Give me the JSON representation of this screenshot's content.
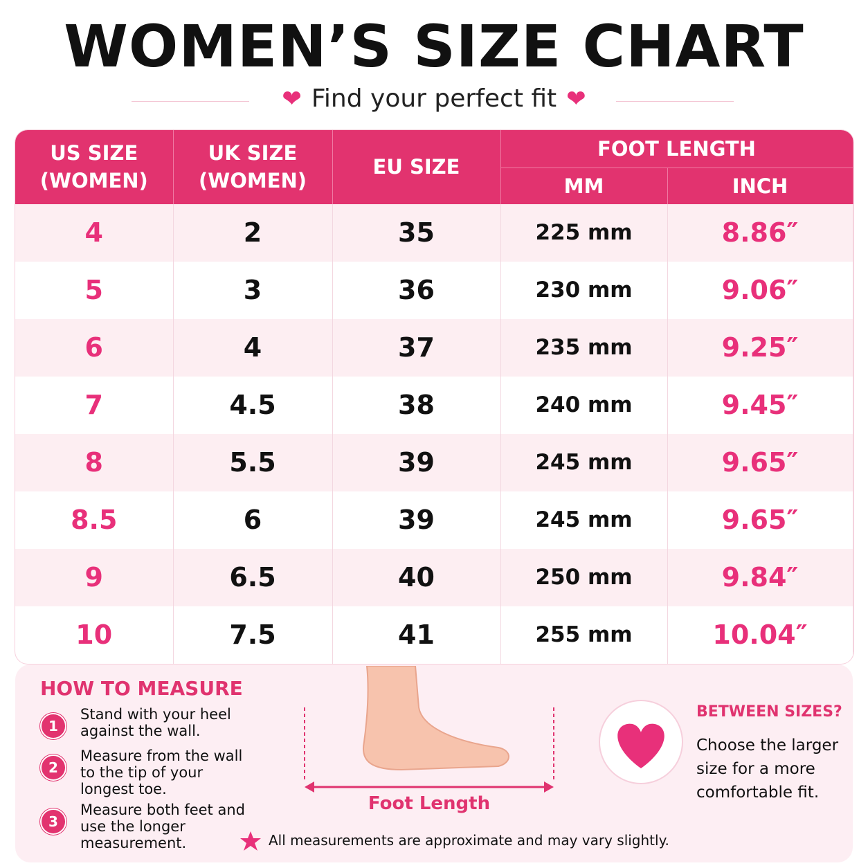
{
  "header": {
    "title": "WOMEN’S SIZE CHART",
    "subtitle": "Find your perfect fit"
  },
  "table": {
    "columns": [
      "US SIZE (WOMEN)",
      "UK SIZE (WOMEN)",
      "EU SIZE"
    ],
    "group": "FOOT LENGTH",
    "subcolumns": [
      "MM",
      "INCH"
    ],
    "rows": [
      [
        "4",
        "2",
        "35",
        "225 mm",
        "8.86″"
      ],
      [
        "5",
        "3",
        "36",
        "230 mm",
        "9.06″"
      ],
      [
        "6",
        "4",
        "37",
        "235 mm",
        "9.25″"
      ],
      [
        "7",
        "4.5",
        "38",
        "240 mm",
        "9.45″"
      ],
      [
        "8",
        "5.5",
        "39",
        "245 mm",
        "9.65″"
      ],
      [
        "8.5",
        "6",
        "39",
        "245 mm",
        "9.65″"
      ],
      [
        "9",
        "6.5",
        "40",
        "250 mm",
        "9.84″"
      ],
      [
        "10",
        "7.5",
        "41",
        "255 mm",
        "10.04″"
      ]
    ]
  },
  "measure": {
    "title": "HOW TO MEASURE",
    "steps": [
      {
        "number": "1",
        "text": "Stand with your heel against the wall."
      },
      {
        "number": "2",
        "text": "Measure from the wall to the tip of your longest toe."
      },
      {
        "number": "3",
        "text": "Measure both feet and use the longer measurement."
      }
    ]
  },
  "diagram": {
    "label": "Foot Length"
  },
  "tip": {
    "title": "BETWEEN SIZES?",
    "text": "Choose the larger size for a more comfortable fit."
  },
  "footnote": "All measurements are approximate and may vary slightly."
}
